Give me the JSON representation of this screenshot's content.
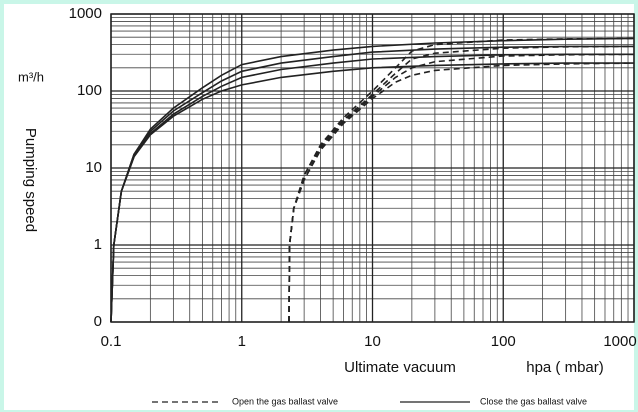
{
  "chart_data": {
    "type": "line",
    "y_label": "Pumping speed",
    "y_unit": "m³/h",
    "x_label": "Ultimate  vacuum",
    "x_unit": "hpa ( mbar)",
    "log_x": true,
    "log_y": true,
    "grid": true,
    "xlim": [
      0.1,
      1000
    ],
    "ylim": [
      0.1,
      1000
    ],
    "xticks": [
      0.1,
      1,
      10,
      100,
      1000
    ],
    "yticks": [
      {
        "value": 0.1,
        "label": "0"
      },
      1,
      10,
      100,
      1000
    ],
    "series": [
      {
        "style": "solid",
        "color": "#222222",
        "x": [
          0.1,
          0.105,
          0.12,
          0.15,
          0.2,
          0.3,
          0.5,
          0.7,
          1,
          2,
          5,
          10,
          30,
          100,
          300,
          1000
        ],
        "values": [
          0.1,
          1,
          5,
          15,
          32,
          60,
          110,
          160,
          220,
          280,
          340,
          380,
          420,
          450,
          470,
          480
        ]
      },
      {
        "style": "solid",
        "color": "#222222",
        "x": [
          0.1,
          0.105,
          0.12,
          0.15,
          0.2,
          0.3,
          0.5,
          0.7,
          1,
          2,
          5,
          10,
          30,
          100,
          300,
          1000
        ],
        "values": [
          0.1,
          1,
          5,
          15,
          30,
          55,
          95,
          135,
          180,
          230,
          280,
          320,
          350,
          370,
          380,
          380
        ]
      },
      {
        "style": "solid",
        "color": "#222222",
        "x": [
          0.1,
          0.105,
          0.12,
          0.15,
          0.2,
          0.3,
          0.5,
          0.7,
          1,
          2,
          5,
          10,
          30,
          100,
          300,
          1000
        ],
        "values": [
          0.1,
          1,
          5,
          14,
          28,
          50,
          85,
          115,
          150,
          190,
          230,
          260,
          280,
          295,
          300,
          300
        ]
      },
      {
        "style": "solid",
        "color": "#222222",
        "x": [
          0.1,
          0.105,
          0.12,
          0.15,
          0.2,
          0.3,
          0.5,
          0.7,
          1,
          2,
          5,
          10,
          30,
          100,
          300,
          1000
        ],
        "values": [
          0.1,
          1,
          5,
          14,
          27,
          47,
          78,
          100,
          120,
          150,
          180,
          200,
          215,
          225,
          230,
          230
        ]
      },
      {
        "style": "dashed",
        "color": "#222222",
        "x": [
          2.3,
          2.32,
          2.5,
          3,
          4,
          6,
          10,
          15,
          20,
          30,
          100,
          300,
          1000
        ],
        "values": [
          0.1,
          1,
          3,
          8,
          20,
          45,
          100,
          200,
          330,
          400,
          460,
          475,
          480
        ]
      },
      {
        "style": "dashed",
        "color": "#222222",
        "x": [
          2.3,
          2.32,
          2.5,
          3,
          4,
          6,
          10,
          15,
          20,
          30,
          100,
          300,
          1000
        ],
        "values": [
          0.1,
          1,
          3,
          8,
          19,
          42,
          90,
          170,
          260,
          310,
          360,
          375,
          380
        ]
      },
      {
        "style": "dashed",
        "color": "#222222",
        "x": [
          2.3,
          2.32,
          2.5,
          3,
          4,
          6,
          10,
          15,
          20,
          30,
          100,
          300,
          1000
        ],
        "values": [
          0.1,
          1,
          3,
          7,
          18,
          40,
          85,
          150,
          200,
          240,
          285,
          295,
          300
        ]
      },
      {
        "style": "dashed",
        "color": "#222222",
        "x": [
          2.3,
          2.32,
          2.5,
          3,
          4,
          6,
          10,
          15,
          20,
          30,
          100,
          300,
          1000
        ],
        "values": [
          0.1,
          1,
          3,
          7,
          17,
          38,
          80,
          130,
          160,
          185,
          215,
          225,
          230
        ]
      }
    ],
    "legend": [
      {
        "label": "Open the gas ballast valve",
        "style": "dashed"
      },
      {
        "label": "Close the gas ballast valve",
        "style": "solid"
      }
    ]
  }
}
